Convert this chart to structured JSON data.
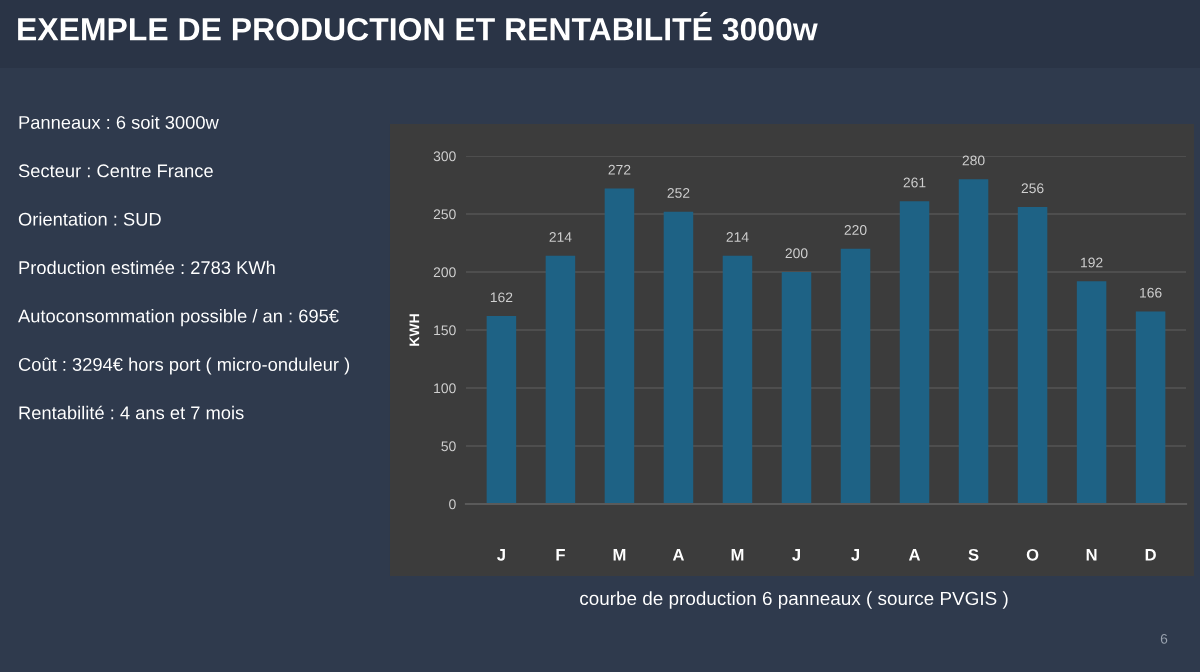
{
  "chart_data": [
    {
      "type": "other",
      "title": "EXEMPLE DE PRODUCTION ET RENTABILITÉ 3000w",
      "annotations": [
        "Panneaux : 6 soit 3000w",
        "Secteur : Centre France",
        "Orientation : SUD",
        "Production estimée : 2783 KWh",
        "Autoconsommation possible / an : 695€",
        "Coût : 3294€ hors port ( micro-onduleur )",
        "Rentabilité : 4 ans et 7 mois",
        "6"
      ]
    },
    {
      "type": "bar",
      "ylabel": "KWH",
      "categories": [
        "J",
        "F",
        "M",
        "A",
        "M",
        "J",
        "J",
        "A",
        "S",
        "O",
        "N",
        "D"
      ],
      "values": [
        162,
        214,
        272,
        252,
        214,
        200,
        220,
        261,
        280,
        256,
        192,
        166
      ],
      "color": "#1e6285",
      "ylim": [
        0,
        300
      ],
      "yticks": [
        0,
        50,
        100,
        150,
        200,
        250,
        300
      ],
      "grid": "y",
      "data_labels": true,
      "annotations": [
        "courbe de production 6 panneaux ( source PVGIS )"
      ]
    }
  ]
}
